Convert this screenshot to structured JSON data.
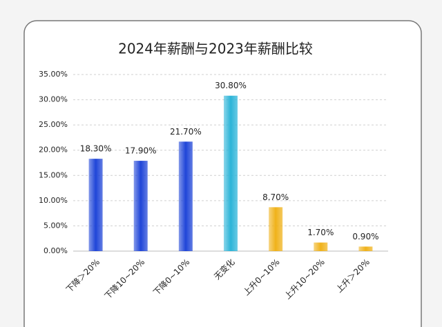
{
  "chart_data": {
    "type": "bar",
    "title": "2024年薪酬与2023年薪酬比较",
    "categories": [
      "下降＞20%",
      "下降10~20%",
      "下降0~10%",
      "无变化",
      "上升0~10%",
      "上升10~20%",
      "上升＞20%"
    ],
    "values": [
      18.3,
      17.9,
      21.7,
      30.8,
      8.7,
      1.7,
      0.9
    ],
    "value_labels": [
      "18.30%",
      "17.90%",
      "21.70%",
      "30.80%",
      "8.70%",
      "1.70%",
      "0.90%"
    ],
    "colors": [
      "#1f45d8",
      "#1f45d8",
      "#1f45d8",
      "#2bb4d8",
      "#f0b21a",
      "#f0b21a",
      "#f0b21a"
    ],
    "ylim": [
      0,
      35
    ],
    "yticks": [
      {
        "value": 0,
        "label": "0.00%"
      },
      {
        "value": 5,
        "label": "5.00%"
      },
      {
        "value": 10,
        "label": "10.00%"
      },
      {
        "value": 15,
        "label": "15.00%"
      },
      {
        "value": 20,
        "label": "20.00%"
      },
      {
        "value": 25,
        "label": "25.00%"
      },
      {
        "value": 30,
        "label": "30.00%"
      },
      {
        "value": 35,
        "label": "35.00%"
      }
    ],
    "grid": true
  }
}
